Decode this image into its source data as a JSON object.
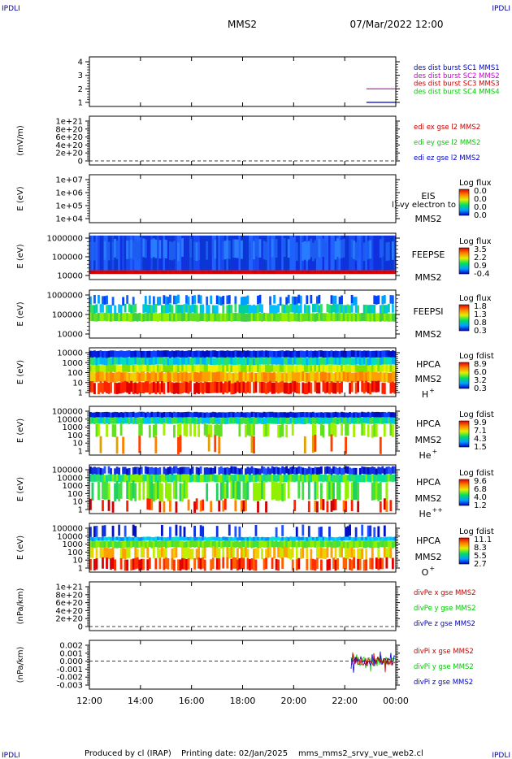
{
  "header": {
    "corner_logo": "IPDLI",
    "spacecraft": "MMS2",
    "datetime": "07/Mar/2022 12:00"
  },
  "footer": {
    "produced_by": "Produced by cl (IRAP)",
    "printing_date": "Printing date: 02/Jan/2025",
    "file_name": "mms_mms2_srvy_vue_web2.cl"
  },
  "time_axis": {
    "ticks": [
      "12:00",
      "14:00",
      "16:00",
      "18:00",
      "20:00",
      "22:00",
      "00:00"
    ],
    "start_hour": 12,
    "end_hour": 24
  },
  "colors": {
    "sc1": "#0000cc",
    "sc2": "#cc00cc",
    "sc3": "#cc0000",
    "sc4": "#00cc00",
    "x": "#cc0000",
    "y": "#00cc00",
    "z": "#0000cc"
  },
  "panels": [
    {
      "id": "burst",
      "y_ticks": [
        "4",
        "3",
        "2",
        "1"
      ],
      "legend": [
        {
          "text": "des dist burst SC1 MMS1",
          "color": "sc1"
        },
        {
          "text": "des dist burst SC2 MMS2",
          "color": "sc2"
        },
        {
          "text": "des dist burst SC3 MMS3",
          "color": "sc3"
        },
        {
          "text": "des dist burst SC4 MMS4",
          "color": "sc4"
        }
      ],
      "bursts": [
        {
          "sc": 2,
          "start_hour": 22.85,
          "end_hour": 24
        },
        {
          "sc": 1,
          "start_hour": 22.85,
          "end_hour": 24
        }
      ]
    },
    {
      "id": "edi",
      "ylabel": "(mV/m)",
      "y_ticks": [
        "1e+21",
        "8e+20",
        "6e+20",
        "4e+20",
        "2e+20",
        "0"
      ],
      "legend": [
        {
          "text": "edi ex gse l2 MMS2",
          "color": "x"
        },
        {
          "text": "edi ey gse l2 MMS2",
          "color": "y"
        },
        {
          "text": "edi ez gse l2 MMS2",
          "color": "z"
        }
      ]
    },
    {
      "id": "eis",
      "ylabel": "E (eV)",
      "y_ticks": [
        "1e+07",
        "1e+06",
        "1e+05",
        "1e+04"
      ],
      "instrument": "EIS",
      "overlay": "l) vy electron to",
      "spacecraft": "MMS2",
      "cbar_title": "Log flux",
      "cbar_ticks": [
        "0.0",
        "0.0",
        "0.0",
        "0.0"
      ]
    },
    {
      "id": "feepse",
      "ylabel": "E (eV)",
      "y_ticks": [
        "1000000",
        "100000",
        "10000"
      ],
      "instrument": "FEEPSE",
      "spacecraft": "MMS2",
      "cbar_title": "Log flux",
      "cbar_ticks": [
        "3.5",
        "2.2",
        "0.9",
        "-0.4"
      ]
    },
    {
      "id": "feepsi",
      "ylabel": "E (eV)",
      "y_ticks": [
        "1000000",
        "100000",
        "10000"
      ],
      "instrument": "FEEPSI",
      "spacecraft": "MMS2",
      "cbar_title": "Log flux",
      "cbar_ticks": [
        "1.8",
        "1.3",
        "0.8",
        "0.3"
      ]
    },
    {
      "id": "hpca_h",
      "ylabel": "E (eV)",
      "y_ticks": [
        "10000",
        "1000",
        "100",
        "10",
        "1"
      ],
      "instrument": "HPCA",
      "spacecraft": "MMS2",
      "species": "H",
      "charge": "+",
      "cbar_title": "Log fdist",
      "cbar_ticks": [
        "8.9",
        "6.0",
        "3.2",
        "0.3"
      ]
    },
    {
      "id": "hpca_he",
      "ylabel": "E (eV)",
      "y_ticks": [
        "100000",
        "10000",
        "1000",
        "100",
        "10",
        "1"
      ],
      "instrument": "HPCA",
      "spacecraft": "MMS2",
      "species": "He",
      "charge": "+",
      "cbar_title": "Log fdist",
      "cbar_ticks": [
        "9.9",
        "7.1",
        "4.3",
        "1.5"
      ]
    },
    {
      "id": "hpca_hepp",
      "ylabel": "E (eV)",
      "y_ticks": [
        "100000",
        "10000",
        "1000",
        "100",
        "10",
        "1"
      ],
      "instrument": "HPCA",
      "spacecraft": "MMS2",
      "species": "He",
      "charge": "++",
      "cbar_title": "Log fdist",
      "cbar_ticks": [
        "9.6",
        "6.8",
        "4.0",
        "1.2"
      ]
    },
    {
      "id": "hpca_o",
      "ylabel": "E (eV)",
      "y_ticks": [
        "100000",
        "10000",
        "1000",
        "100",
        "10",
        "1"
      ],
      "instrument": "HPCA",
      "spacecraft": "MMS2",
      "species": "O",
      "charge": "+",
      "cbar_title": "Log fdist",
      "cbar_ticks": [
        "11.1",
        "8.3",
        "5.5",
        "2.7"
      ]
    },
    {
      "id": "divpe",
      "ylabel": "(nPa/km)",
      "y_ticks": [
        "1e+21",
        "8e+20",
        "6e+20",
        "4e+20",
        "2e+20",
        "0"
      ],
      "legend": [
        {
          "text": "divPe x gse MMS2",
          "color": "x"
        },
        {
          "text": "divPe y gse MMS2",
          "color": "y"
        },
        {
          "text": "divPe z gse MMS2",
          "color": "z"
        }
      ]
    },
    {
      "id": "divpi",
      "ylabel": "(nPa/km)",
      "y_ticks": [
        "0.002",
        "0.001",
        "0.000",
        "-0.001",
        "-0.002",
        "-0.003"
      ],
      "legend": [
        {
          "text": "divPi x gse MMS2",
          "color": "x"
        },
        {
          "text": "divPi y gse MMS2",
          "color": "y"
        },
        {
          "text": "divPi z gse MMS2",
          "color": "z"
        }
      ],
      "data_start_hour": 22.25
    }
  ],
  "chart_data": {
    "type": "heatmap",
    "title": "MMS2",
    "x_range_hours": [
      12,
      24
    ],
    "panels": [
      {
        "name": "burst",
        "y": [
          1,
          4
        ],
        "bursts": {
          "SC2": [
            22.85,
            24
          ],
          "SC1": [
            22.85,
            24
          ]
        }
      },
      {
        "name": "EIS",
        "ylim": [
          10000,
          10000000
        ],
        "scale": "log",
        "fill": "none"
      },
      {
        "name": "FEEPSE",
        "ylim": [
          10000,
          1000000
        ],
        "scale": "log",
        "bands": [
          {
            "emin": 30000,
            "emax": 38000,
            "level": "max"
          },
          {
            "emin": 38000,
            "emax": 1000000,
            "level": "low"
          }
        ]
      },
      {
        "name": "FEEPSI",
        "ylim": [
          10000,
          1000000
        ],
        "scale": "log",
        "bands": [
          {
            "emin": 50000,
            "emax": 150000,
            "level": "mid"
          },
          {
            "emin": 150000,
            "emax": 500000,
            "level": "sparse"
          }
        ]
      },
      {
        "name": "HPCA H+",
        "ylim": [
          1,
          30000
        ],
        "scale": "log"
      },
      {
        "name": "HPCA He+",
        "ylim": [
          1,
          100000
        ],
        "scale": "log"
      },
      {
        "name": "HPCA He++",
        "ylim": [
          1,
          100000
        ],
        "scale": "log"
      },
      {
        "name": "HPCA O+",
        "ylim": [
          1,
          100000
        ],
        "scale": "log"
      },
      {
        "name": "divPi",
        "ylim": [
          -0.003,
          0.002
        ],
        "data_start_hour": 22.25
      }
    ]
  }
}
